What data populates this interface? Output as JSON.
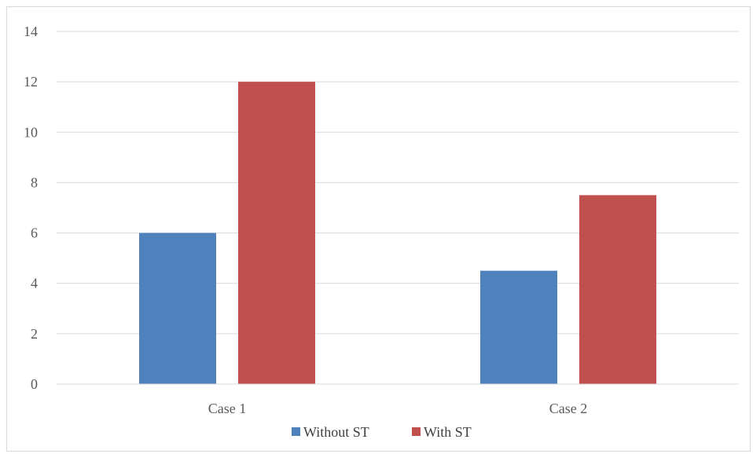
{
  "chart_data": {
    "type": "bar",
    "title": "",
    "xlabel": "",
    "ylabel": "",
    "categories": [
      "Case 1",
      "Case 2"
    ],
    "series": [
      {
        "name": "Without ST",
        "values": [
          6,
          4.5
        ],
        "color": "#4f81bd"
      },
      {
        "name": "With ST",
        "values": [
          12,
          7.5
        ],
        "color": "#c0504d"
      }
    ],
    "ylim": [
      0,
      14
    ],
    "yticks": [
      0,
      2,
      4,
      6,
      8,
      10,
      12,
      14
    ],
    "grid": true,
    "legend_position": "bottom"
  }
}
